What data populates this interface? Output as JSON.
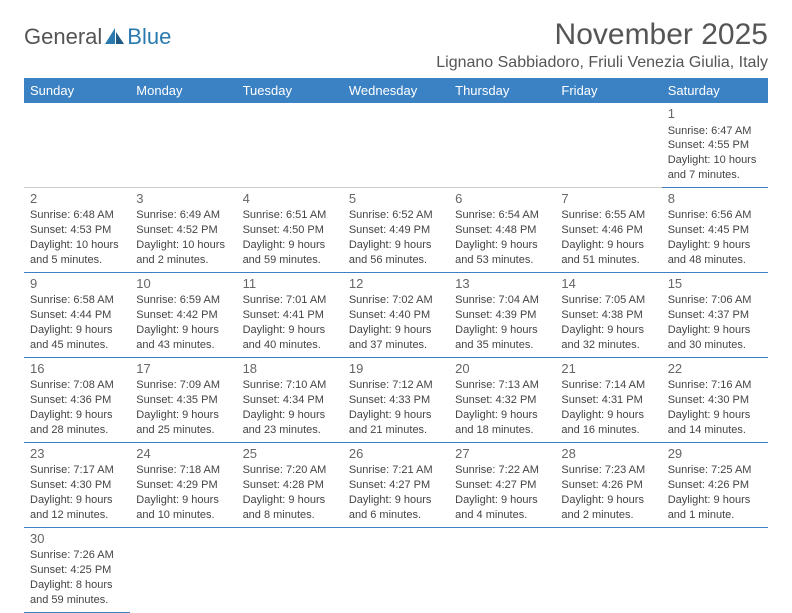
{
  "logo": {
    "text1": "General",
    "text2": "Blue"
  },
  "title": "November 2025",
  "location": "Lignano Sabbiadoro, Friuli Venezia Giulia, Italy",
  "colors": {
    "header_bg": "#3b82c4",
    "header_text": "#ffffff",
    "rule": "#3b82c4",
    "text": "#444444"
  },
  "day_headers": [
    "Sunday",
    "Monday",
    "Tuesday",
    "Wednesday",
    "Thursday",
    "Friday",
    "Saturday"
  ],
  "weeks": [
    [
      null,
      null,
      null,
      null,
      null,
      null,
      {
        "n": "1",
        "l1": "Sunrise: 6:47 AM",
        "l2": "Sunset: 4:55 PM",
        "l3": "Daylight: 10 hours",
        "l4": "and 7 minutes."
      }
    ],
    [
      {
        "n": "2",
        "l1": "Sunrise: 6:48 AM",
        "l2": "Sunset: 4:53 PM",
        "l3": "Daylight: 10 hours",
        "l4": "and 5 minutes."
      },
      {
        "n": "3",
        "l1": "Sunrise: 6:49 AM",
        "l2": "Sunset: 4:52 PM",
        "l3": "Daylight: 10 hours",
        "l4": "and 2 minutes."
      },
      {
        "n": "4",
        "l1": "Sunrise: 6:51 AM",
        "l2": "Sunset: 4:50 PM",
        "l3": "Daylight: 9 hours",
        "l4": "and 59 minutes."
      },
      {
        "n": "5",
        "l1": "Sunrise: 6:52 AM",
        "l2": "Sunset: 4:49 PM",
        "l3": "Daylight: 9 hours",
        "l4": "and 56 minutes."
      },
      {
        "n": "6",
        "l1": "Sunrise: 6:54 AM",
        "l2": "Sunset: 4:48 PM",
        "l3": "Daylight: 9 hours",
        "l4": "and 53 minutes."
      },
      {
        "n": "7",
        "l1": "Sunrise: 6:55 AM",
        "l2": "Sunset: 4:46 PM",
        "l3": "Daylight: 9 hours",
        "l4": "and 51 minutes."
      },
      {
        "n": "8",
        "l1": "Sunrise: 6:56 AM",
        "l2": "Sunset: 4:45 PM",
        "l3": "Daylight: 9 hours",
        "l4": "and 48 minutes."
      }
    ],
    [
      {
        "n": "9",
        "l1": "Sunrise: 6:58 AM",
        "l2": "Sunset: 4:44 PM",
        "l3": "Daylight: 9 hours",
        "l4": "and 45 minutes."
      },
      {
        "n": "10",
        "l1": "Sunrise: 6:59 AM",
        "l2": "Sunset: 4:42 PM",
        "l3": "Daylight: 9 hours",
        "l4": "and 43 minutes."
      },
      {
        "n": "11",
        "l1": "Sunrise: 7:01 AM",
        "l2": "Sunset: 4:41 PM",
        "l3": "Daylight: 9 hours",
        "l4": "and 40 minutes."
      },
      {
        "n": "12",
        "l1": "Sunrise: 7:02 AM",
        "l2": "Sunset: 4:40 PM",
        "l3": "Daylight: 9 hours",
        "l4": "and 37 minutes."
      },
      {
        "n": "13",
        "l1": "Sunrise: 7:04 AM",
        "l2": "Sunset: 4:39 PM",
        "l3": "Daylight: 9 hours",
        "l4": "and 35 minutes."
      },
      {
        "n": "14",
        "l1": "Sunrise: 7:05 AM",
        "l2": "Sunset: 4:38 PM",
        "l3": "Daylight: 9 hours",
        "l4": "and 32 minutes."
      },
      {
        "n": "15",
        "l1": "Sunrise: 7:06 AM",
        "l2": "Sunset: 4:37 PM",
        "l3": "Daylight: 9 hours",
        "l4": "and 30 minutes."
      }
    ],
    [
      {
        "n": "16",
        "l1": "Sunrise: 7:08 AM",
        "l2": "Sunset: 4:36 PM",
        "l3": "Daylight: 9 hours",
        "l4": "and 28 minutes."
      },
      {
        "n": "17",
        "l1": "Sunrise: 7:09 AM",
        "l2": "Sunset: 4:35 PM",
        "l3": "Daylight: 9 hours",
        "l4": "and 25 minutes."
      },
      {
        "n": "18",
        "l1": "Sunrise: 7:10 AM",
        "l2": "Sunset: 4:34 PM",
        "l3": "Daylight: 9 hours",
        "l4": "and 23 minutes."
      },
      {
        "n": "19",
        "l1": "Sunrise: 7:12 AM",
        "l2": "Sunset: 4:33 PM",
        "l3": "Daylight: 9 hours",
        "l4": "and 21 minutes."
      },
      {
        "n": "20",
        "l1": "Sunrise: 7:13 AM",
        "l2": "Sunset: 4:32 PM",
        "l3": "Daylight: 9 hours",
        "l4": "and 18 minutes."
      },
      {
        "n": "21",
        "l1": "Sunrise: 7:14 AM",
        "l2": "Sunset: 4:31 PM",
        "l3": "Daylight: 9 hours",
        "l4": "and 16 minutes."
      },
      {
        "n": "22",
        "l1": "Sunrise: 7:16 AM",
        "l2": "Sunset: 4:30 PM",
        "l3": "Daylight: 9 hours",
        "l4": "and 14 minutes."
      }
    ],
    [
      {
        "n": "23",
        "l1": "Sunrise: 7:17 AM",
        "l2": "Sunset: 4:30 PM",
        "l3": "Daylight: 9 hours",
        "l4": "and 12 minutes."
      },
      {
        "n": "24",
        "l1": "Sunrise: 7:18 AM",
        "l2": "Sunset: 4:29 PM",
        "l3": "Daylight: 9 hours",
        "l4": "and 10 minutes."
      },
      {
        "n": "25",
        "l1": "Sunrise: 7:20 AM",
        "l2": "Sunset: 4:28 PM",
        "l3": "Daylight: 9 hours",
        "l4": "and 8 minutes."
      },
      {
        "n": "26",
        "l1": "Sunrise: 7:21 AM",
        "l2": "Sunset: 4:27 PM",
        "l3": "Daylight: 9 hours",
        "l4": "and 6 minutes."
      },
      {
        "n": "27",
        "l1": "Sunrise: 7:22 AM",
        "l2": "Sunset: 4:27 PM",
        "l3": "Daylight: 9 hours",
        "l4": "and 4 minutes."
      },
      {
        "n": "28",
        "l1": "Sunrise: 7:23 AM",
        "l2": "Sunset: 4:26 PM",
        "l3": "Daylight: 9 hours",
        "l4": "and 2 minutes."
      },
      {
        "n": "29",
        "l1": "Sunrise: 7:25 AM",
        "l2": "Sunset: 4:26 PM",
        "l3": "Daylight: 9 hours",
        "l4": "and 1 minute."
      }
    ],
    [
      {
        "n": "30",
        "l1": "Sunrise: 7:26 AM",
        "l2": "Sunset: 4:25 PM",
        "l3": "Daylight: 8 hours",
        "l4": "and 59 minutes."
      },
      null,
      null,
      null,
      null,
      null,
      null
    ]
  ]
}
